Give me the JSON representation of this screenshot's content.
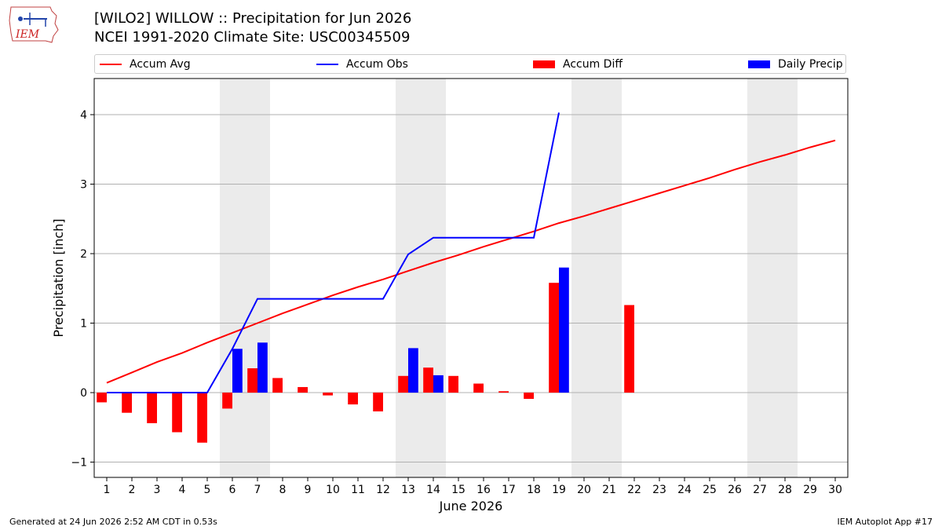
{
  "header": {
    "title_line1": "[WILO2] WILLOW :: Precipitation for Jun 2026",
    "title_line2": "NCEI 1991-2020 Climate Site: USC00345509"
  },
  "logo": {
    "text": "IEM",
    "icon": "iem-logo-icon"
  },
  "legend": [
    {
      "label": "Accum Avg",
      "kind": "line",
      "color": "#ff0000"
    },
    {
      "label": "Accum Obs",
      "kind": "line",
      "color": "#0000ff"
    },
    {
      "label": "Accum Diff",
      "kind": "box",
      "color": "#ff0000"
    },
    {
      "label": "Daily Precip",
      "kind": "box",
      "color": "#0000ff"
    }
  ],
  "footer": {
    "left": "Generated at 24 Jun 2026 2:52 AM CDT in 0.53s",
    "right": "IEM Autoplot App #17"
  },
  "chart_data": {
    "type": "bar",
    "xlabel": "June 2026",
    "ylabel": "Precipitation [inch]",
    "xlim": [
      0.5,
      30.5
    ],
    "ylim": [
      -1.22,
      4.52
    ],
    "yticks": [
      -1,
      0,
      1,
      2,
      3,
      4
    ],
    "ytick_labels": [
      "−1",
      "0",
      "1",
      "2",
      "3",
      "4"
    ],
    "x": [
      1,
      2,
      3,
      4,
      5,
      6,
      7,
      8,
      9,
      10,
      11,
      12,
      13,
      14,
      15,
      16,
      17,
      18,
      19,
      20,
      21,
      22,
      23,
      24,
      25,
      26,
      27,
      28,
      29,
      30
    ],
    "grid": "horizontal",
    "weekend_shading": [
      [
        5.5,
        7.5
      ],
      [
        12.5,
        14.5
      ],
      [
        19.5,
        21.5
      ],
      [
        26.5,
        28.5
      ]
    ],
    "shading_color": "#ebebeb",
    "series": [
      {
        "name": "Accum Avg",
        "type": "line",
        "color": "#ff0000",
        "x": [
          1,
          2,
          3,
          4,
          5,
          6,
          7,
          8,
          9,
          10,
          11,
          12,
          13,
          14,
          15,
          16,
          17,
          18,
          19,
          20,
          21,
          22,
          23,
          24,
          25,
          26,
          27,
          28,
          29,
          30
        ],
        "values": [
          0.14,
          0.29,
          0.44,
          0.57,
          0.72,
          0.86,
          1.0,
          1.14,
          1.27,
          1.4,
          1.52,
          1.63,
          1.75,
          1.87,
          1.98,
          2.1,
          2.21,
          2.32,
          2.44,
          2.54,
          2.65,
          2.76,
          2.87,
          2.98,
          3.09,
          3.21,
          3.32,
          3.42,
          3.53,
          3.63
        ]
      },
      {
        "name": "Accum Obs",
        "type": "line",
        "color": "#0000ff",
        "x": [
          1,
          2,
          3,
          4,
          5,
          6,
          7,
          8,
          9,
          10,
          11,
          12,
          13,
          14,
          15,
          16,
          17,
          18,
          19
        ],
        "values": [
          0,
          0,
          0,
          0,
          0,
          0.63,
          1.35,
          1.35,
          1.35,
          1.35,
          1.35,
          1.35,
          1.99,
          2.23,
          2.23,
          2.23,
          2.23,
          2.23,
          4.03
        ]
      },
      {
        "name": "Accum Diff",
        "type": "bar",
        "color": "#ff0000",
        "x": [
          1,
          2,
          3,
          4,
          5,
          6,
          7,
          8,
          9,
          10,
          11,
          12,
          13,
          14,
          15,
          16,
          17,
          18,
          19,
          22
        ],
        "values": [
          -0.14,
          -0.29,
          -0.44,
          -0.57,
          -0.72,
          -0.23,
          0.35,
          0.21,
          0.08,
          -0.04,
          -0.17,
          -0.27,
          0.24,
          0.36,
          0.24,
          0.13,
          0.02,
          -0.09,
          1.58,
          1.26
        ]
      },
      {
        "name": "Daily Precip",
        "type": "bar",
        "color": "#0000ff",
        "x": [
          6,
          7,
          13,
          14,
          19
        ],
        "values": [
          0.63,
          0.72,
          0.64,
          0.25,
          1.8
        ]
      }
    ]
  }
}
